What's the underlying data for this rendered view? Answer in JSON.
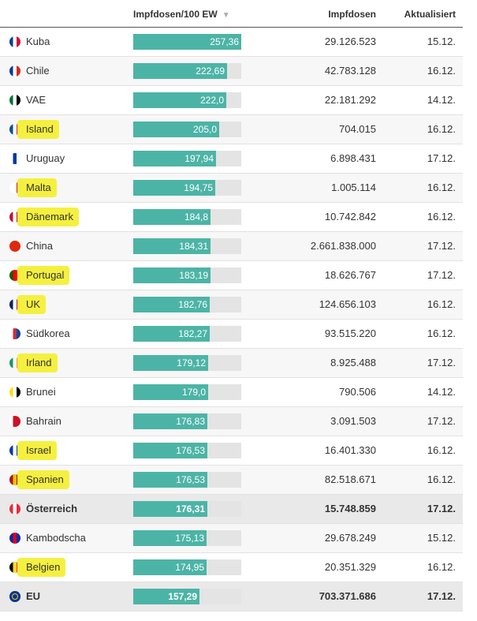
{
  "header": {
    "rate_label": "Impfdosen/100 EW",
    "sort_icon": "▼",
    "doses_label": "Impfdosen",
    "updated_label": "Aktualisiert"
  },
  "chart_data": {
    "type": "bar",
    "xlim": [
      0,
      257.36
    ],
    "rows": [
      {
        "country": "Kuba",
        "rate": 257.36,
        "rate_label": "257,36",
        "doses": "29.126.523",
        "updated": "15.12.",
        "flag": [
          "#0b3d91",
          "#ffffff",
          "#d21034"
        ],
        "highlight": false,
        "bold": false
      },
      {
        "country": "Chile",
        "rate": 222.69,
        "rate_label": "222,69",
        "doses": "42.783.128",
        "updated": "16.12.",
        "flag": [
          "#0039a6",
          "#ffffff",
          "#d52b1e"
        ],
        "highlight": false,
        "bold": false
      },
      {
        "country": "VAE",
        "rate": 222.0,
        "rate_label": "222,0",
        "doses": "22.181.292",
        "updated": "14.12.",
        "flag": [
          "#00732f",
          "#ffffff",
          "#000000"
        ],
        "highlight": false,
        "bold": false
      },
      {
        "country": "Island",
        "rate": 205.0,
        "rate_label": "205,0",
        "doses": "704.015",
        "updated": "16.12.",
        "flag": [
          "#02529c",
          "#ffffff",
          "#dc1e35"
        ],
        "highlight": true,
        "bold": false
      },
      {
        "country": "Uruguay",
        "rate": 197.94,
        "rate_label": "197,94",
        "doses": "6.898.431",
        "updated": "17.12.",
        "flag": [
          "#ffffff",
          "#0038a8",
          "#ffffff"
        ],
        "highlight": false,
        "bold": false
      },
      {
        "country": "Malta",
        "rate": 194.75,
        "rate_label": "194,75",
        "doses": "1.005.114",
        "updated": "16.12.",
        "flag": [
          "#ffffff",
          "#ffffff",
          "#cf142b"
        ],
        "highlight": true,
        "bold": false
      },
      {
        "country": "Dänemark",
        "rate": 184.8,
        "rate_label": "184,8",
        "doses": "10.742.842",
        "updated": "16.12.",
        "flag": [
          "#c8102e",
          "#ffffff",
          "#c8102e"
        ],
        "highlight": true,
        "bold": false
      },
      {
        "country": "China",
        "rate": 184.31,
        "rate_label": "184,31",
        "doses": "2.661.838.000",
        "updated": "17.12.",
        "flag": [
          "#de2910",
          "#de2910",
          "#de2910"
        ],
        "highlight": false,
        "bold": false
      },
      {
        "country": "Portugal",
        "rate": 183.19,
        "rate_label": "183,19",
        "doses": "18.626.767",
        "updated": "17.12.",
        "flag": [
          "#006600",
          "#ff0000",
          "#ff0000"
        ],
        "highlight": true,
        "bold": false
      },
      {
        "country": "UK",
        "rate": 182.76,
        "rate_label": "182,76",
        "doses": "124.656.103",
        "updated": "16.12.",
        "flag": [
          "#012169",
          "#ffffff",
          "#c8102e"
        ],
        "highlight": true,
        "bold": false
      },
      {
        "country": "Südkorea",
        "rate": 182.27,
        "rate_label": "182,27",
        "doses": "93.515.220",
        "updated": "16.12.",
        "flag": [
          "#ffffff",
          "#cd2e3a",
          "#0047a0"
        ],
        "highlight": false,
        "bold": false
      },
      {
        "country": "Irland",
        "rate": 179.12,
        "rate_label": "179,12",
        "doses": "8.925.488",
        "updated": "17.12.",
        "flag": [
          "#169b62",
          "#ffffff",
          "#ff883e"
        ],
        "highlight": true,
        "bold": false
      },
      {
        "country": "Brunei",
        "rate": 179.0,
        "rate_label": "179,0",
        "doses": "790.506",
        "updated": "14.12.",
        "flag": [
          "#f7e017",
          "#ffffff",
          "#000000"
        ],
        "highlight": false,
        "bold": false
      },
      {
        "country": "Bahrain",
        "rate": 176.83,
        "rate_label": "176,83",
        "doses": "3.091.503",
        "updated": "17.12.",
        "flag": [
          "#ffffff",
          "#ce1126",
          "#ce1126"
        ],
        "highlight": false,
        "bold": false
      },
      {
        "country": "Israel",
        "rate": 176.53,
        "rate_label": "176,53",
        "doses": "16.401.330",
        "updated": "16.12.",
        "flag": [
          "#0038b8",
          "#ffffff",
          "#0038b8"
        ],
        "highlight": true,
        "bold": false
      },
      {
        "country": "Spanien",
        "rate": 176.53,
        "rate_label": "176,53",
        "doses": "82.518.671",
        "updated": "16.12.",
        "flag": [
          "#aa151b",
          "#f1bf00",
          "#aa151b"
        ],
        "highlight": true,
        "bold": false
      },
      {
        "country": "Österreich",
        "rate": 176.31,
        "rate_label": "176,31",
        "doses": "15.748.859",
        "updated": "17.12.",
        "flag": [
          "#ed2939",
          "#ffffff",
          "#ed2939"
        ],
        "highlight": false,
        "bold": true
      },
      {
        "country": "Kambodscha",
        "rate": 175.13,
        "rate_label": "175,13",
        "doses": "29.678.249",
        "updated": "15.12.",
        "flag": [
          "#032ea1",
          "#e00025",
          "#032ea1"
        ],
        "highlight": false,
        "bold": false
      },
      {
        "country": "Belgien",
        "rate": 174.95,
        "rate_label": "174,95",
        "doses": "20.351.329",
        "updated": "16.12.",
        "flag": [
          "#000000",
          "#fdda24",
          "#ef3340"
        ],
        "highlight": true,
        "bold": false
      },
      {
        "country": "EU",
        "rate": 157.29,
        "rate_label": "157,29",
        "doses": "703.371.686",
        "updated": "17.12.",
        "flag": [
          "#003399",
          "#003399",
          "#003399"
        ],
        "highlight": false,
        "bold": true
      }
    ]
  },
  "colors": {
    "bar": "#4cb4a6",
    "track": "#e4e4e4",
    "highlight": "#f5f040"
  }
}
